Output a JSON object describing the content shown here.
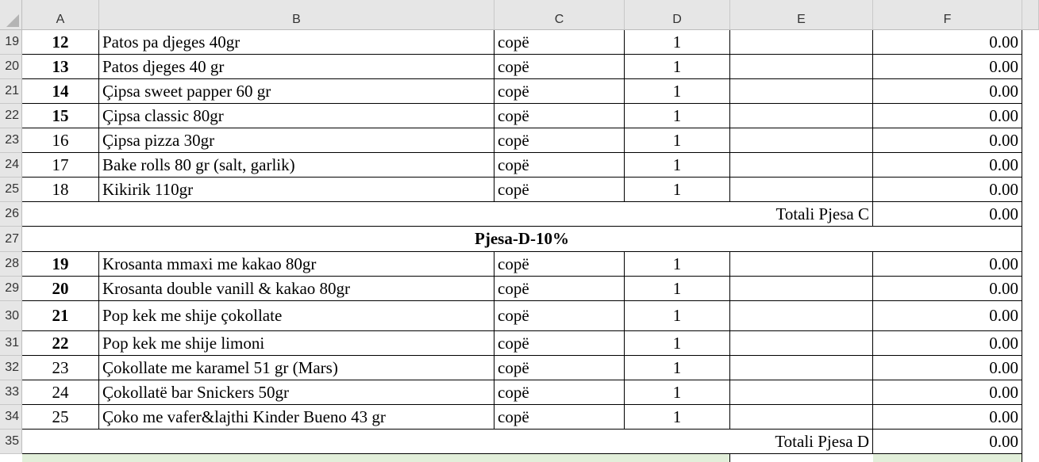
{
  "columns": [
    "A",
    "B",
    "C",
    "D",
    "E",
    "F"
  ],
  "rows": [
    {
      "row": "19",
      "num": "12",
      "bold": true,
      "item": "Patos pa djeges 40gr",
      "unit": "copë",
      "qty": "1",
      "total": "0.00"
    },
    {
      "row": "20",
      "num": "13",
      "bold": true,
      "item": "Patos djeges 40 gr",
      "unit": "copë",
      "qty": "1",
      "total": "0.00"
    },
    {
      "row": "21",
      "num": "14",
      "bold": true,
      "item": "Çipsa sweet papper 60 gr",
      "unit": "copë",
      "qty": "1",
      "total": "0.00"
    },
    {
      "row": "22",
      "num": "15",
      "bold": true,
      "item": "Çipsa classic 80gr",
      "unit": "copë",
      "qty": "1",
      "total": "0.00"
    },
    {
      "row": "23",
      "num": "16",
      "bold": false,
      "item": "Çipsa pizza 30gr",
      "unit": "copë",
      "qty": "1",
      "total": "0.00"
    },
    {
      "row": "24",
      "num": "17",
      "bold": false,
      "item": "Bake rolls 80 gr (salt, garlik)",
      "unit": "copë",
      "qty": "1",
      "total": "0.00"
    },
    {
      "row": "25",
      "num": "18",
      "bold": false,
      "item": "Kikirik 110gr",
      "unit": "copë",
      "qty": "1",
      "total": "0.00"
    },
    {
      "row": "26",
      "type": "total",
      "label": "Totali Pjesa C",
      "total": "0.00"
    },
    {
      "row": "27",
      "type": "section",
      "label": "Pjesa-D-10%"
    },
    {
      "row": "28",
      "num": "19",
      "bold": true,
      "item": "Krosanta mmaxi me kakao 80gr",
      "unit": "copë",
      "qty": "1",
      "total": "0.00"
    },
    {
      "row": "29",
      "num": "20",
      "bold": true,
      "item": "Krosanta double vanill & kakao 80gr",
      "unit": "copë",
      "qty": "1",
      "total": "0.00"
    },
    {
      "row": "30",
      "num": "21",
      "bold": true,
      "item": "Pop kek me shije çokollate",
      "unit": "copë",
      "qty": "1",
      "total": "0.00"
    },
    {
      "row": "31",
      "num": "22",
      "bold": true,
      "item": "Pop kek me shije limoni",
      "unit": "copë",
      "qty": "1",
      "total": "0.00"
    },
    {
      "row": "32",
      "num": "23",
      "bold": false,
      "item": "Çokollate me karamel 51 gr (Mars)",
      "unit": "copë",
      "qty": "1",
      "total": "0.00"
    },
    {
      "row": "33",
      "num": "24",
      "bold": false,
      "item": "Çokollatë bar Snickers 50gr",
      "unit": "copë",
      "qty": "1",
      "total": "0.00"
    },
    {
      "row": "34",
      "num": "25",
      "bold": false,
      "item": "Çoko me vafer&lajthi Kinder Bueno 43 gr",
      "unit": "copë",
      "qty": "1",
      "total": "0.00"
    },
    {
      "row": "35",
      "type": "total",
      "label": "Totali Pjesa D",
      "total": "0.00"
    }
  ]
}
